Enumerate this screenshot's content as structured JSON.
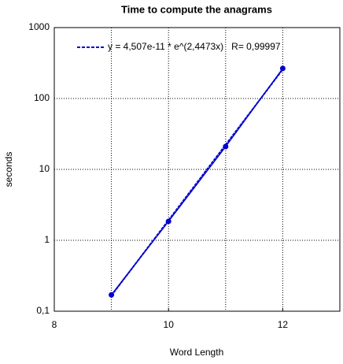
{
  "chart_data": {
    "type": "scatter",
    "title": "Time to compute the anagrams",
    "xlabel": "Word Length",
    "ylabel": "seconds",
    "xlim": [
      8,
      13
    ],
    "xticks": [
      8,
      10,
      12
    ],
    "xgrid_lines": [
      9,
      10,
      11,
      12
    ],
    "ylim": [
      0.1,
      1000
    ],
    "yscale": "log",
    "yticks": [
      {
        "value": 0.1,
        "label": "0,1"
      },
      1,
      10,
      100,
      1000
    ],
    "grid": true,
    "series": [
      {
        "x": [
          9,
          10,
          11,
          12
        ],
        "values": [
          0.17,
          1.85,
          21,
          265
        ],
        "color": "#0000cc",
        "style": "points"
      },
      {
        "name": "y = 4,507e-11 * e^(2,4473x)   R= 0,99997",
        "x": [
          9,
          12
        ],
        "values": [
          0.166,
          257
        ],
        "color": "#0000cc",
        "style": "dashed-line"
      }
    ]
  }
}
